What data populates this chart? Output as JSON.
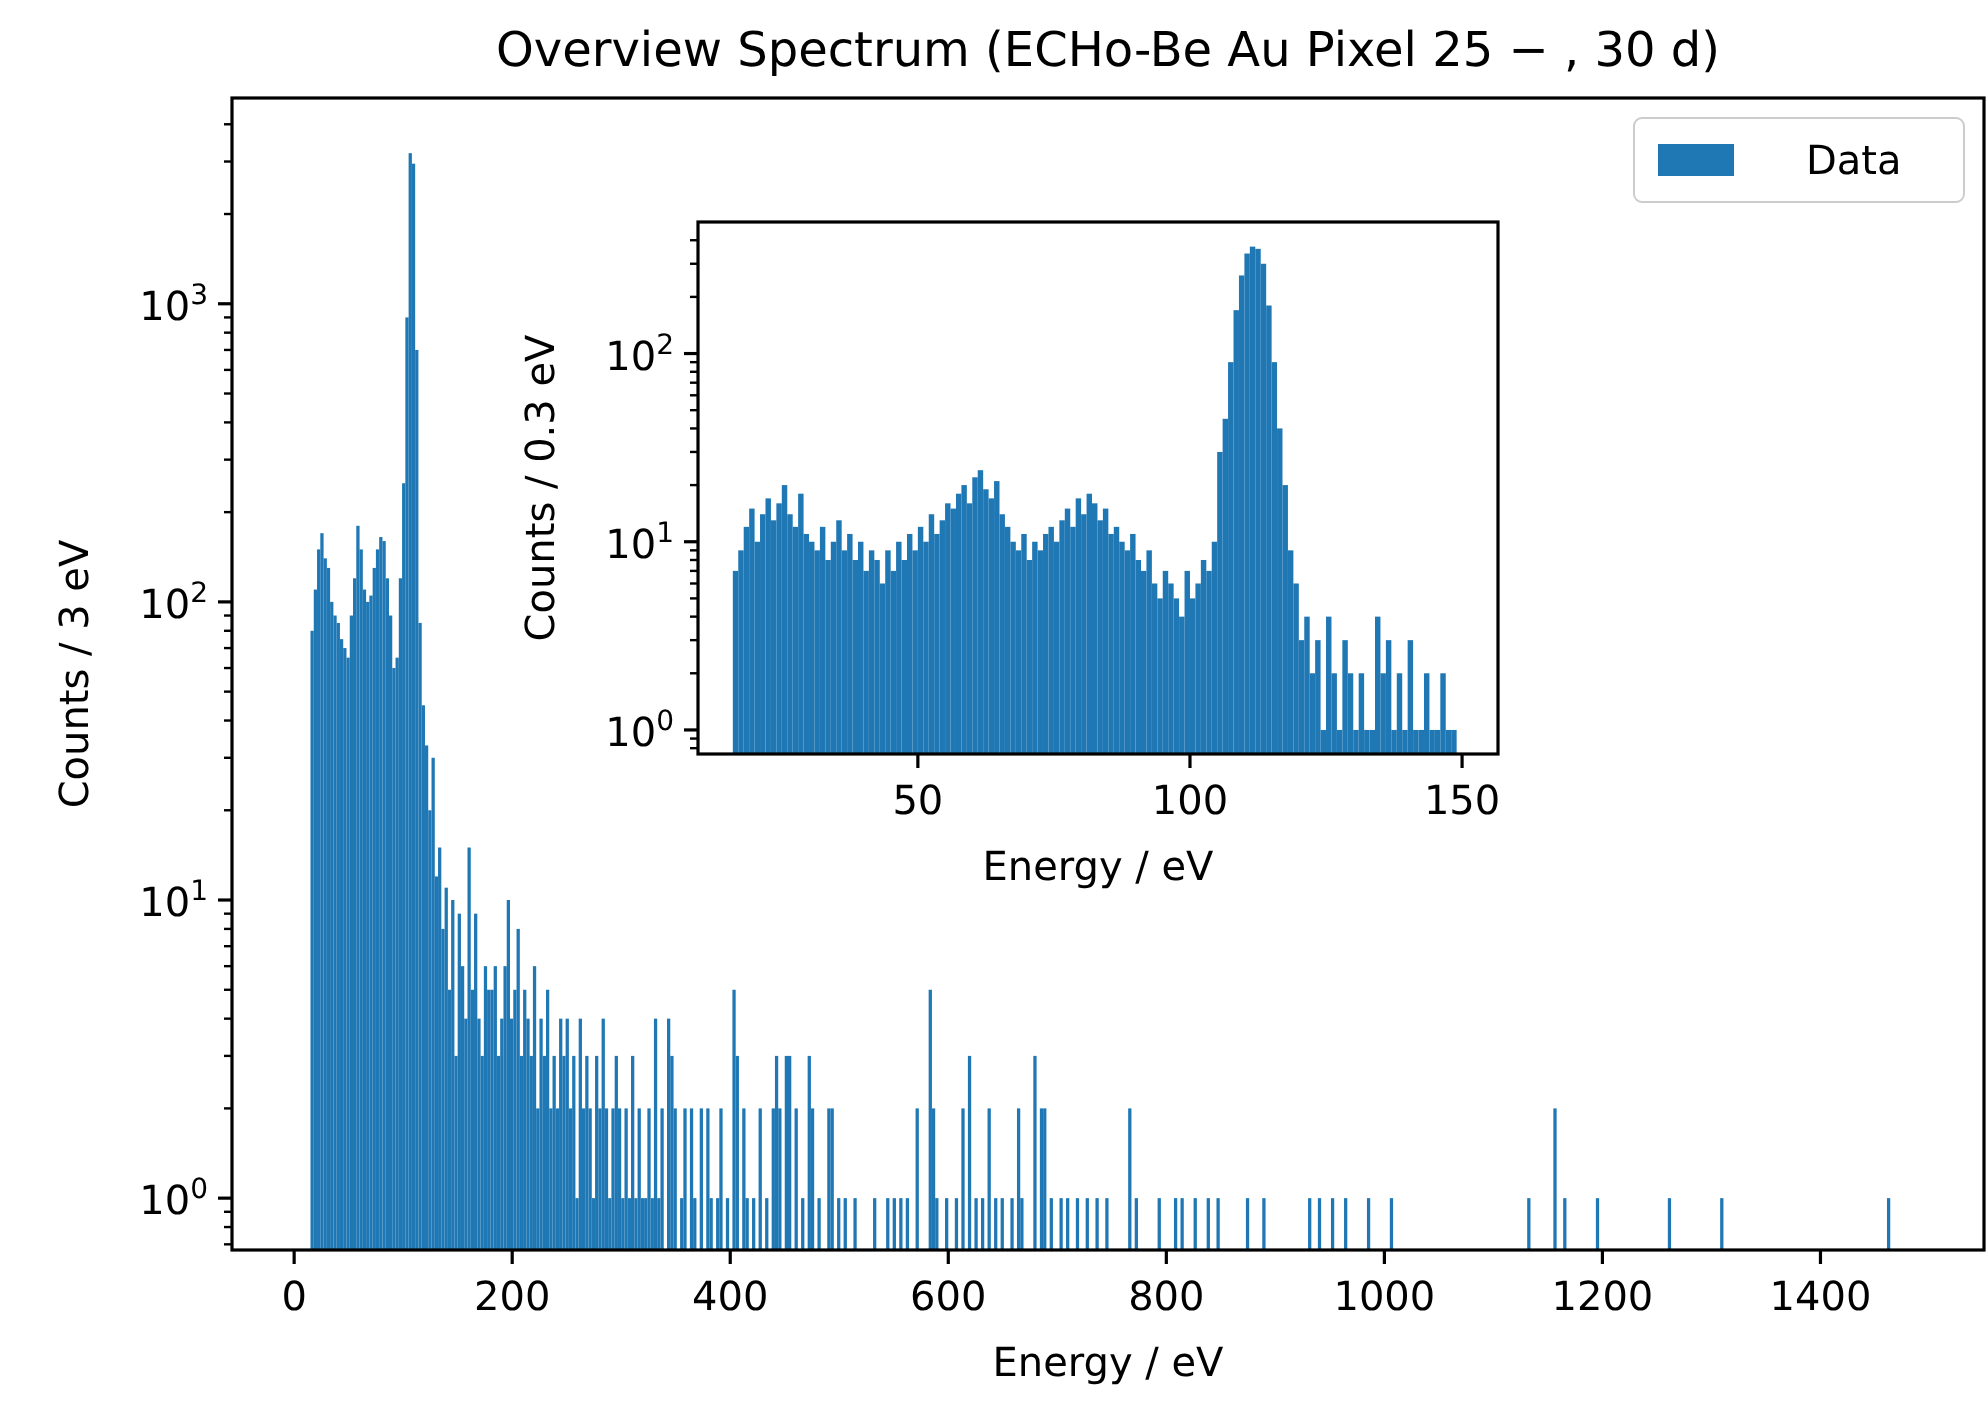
{
  "chart_data": [
    {
      "type": "histogram",
      "title": "Overview Spectrum (ECHo-Be Au Pixel 25 − , 30 d)",
      "xlabel": "Energy / eV",
      "ylabel": "Counts / 3 eV",
      "log": "y",
      "legend": "top right",
      "bins": [
        15,
        18,
        21,
        24,
        27,
        30,
        33,
        36,
        39,
        42,
        45,
        48,
        51,
        54,
        57,
        60,
        63,
        66,
        69,
        72,
        75,
        78,
        81,
        84,
        87,
        90,
        93,
        96,
        99,
        102,
        105,
        108,
        111,
        114,
        117,
        120,
        123,
        126,
        129,
        132,
        135,
        138,
        141,
        144,
        147,
        150,
        153,
        156,
        159,
        162,
        165,
        168,
        171,
        174,
        177,
        180,
        183,
        186,
        189,
        192,
        195,
        198,
        201,
        204,
        207,
        210,
        213,
        216,
        219,
        222,
        225,
        228,
        231,
        234,
        237,
        240,
        243,
        246,
        249,
        252,
        255,
        258,
        261,
        264,
        267,
        270,
        273,
        276,
        279,
        282,
        285,
        288,
        291,
        294,
        297,
        300,
        303,
        306,
        309,
        312,
        315,
        318,
        321,
        324,
        327,
        330,
        333,
        336,
        339,
        342,
        345,
        348,
        351,
        354,
        357,
        360,
        363,
        366,
        369,
        372,
        375,
        378,
        381,
        384,
        387,
        390,
        393,
        396,
        399,
        402,
        405,
        408,
        411,
        414,
        417,
        420,
        423,
        426,
        429,
        432,
        435,
        438,
        441,
        444,
        447,
        450,
        453,
        456,
        459,
        462,
        465,
        468,
        471,
        474,
        477,
        480,
        483,
        489,
        492,
        495,
        498,
        501,
        504,
        507,
        513,
        516,
        531,
        534,
        543,
        546,
        549,
        552,
        555,
        558,
        561,
        564,
        570,
        573,
        582,
        585,
        588,
        591,
        597,
        600,
        606,
        609,
        612,
        615,
        618,
        621,
        624,
        627,
        630,
        633,
        636,
        639,
        642,
        645,
        648,
        651,
        657,
        660,
        663,
        666,
        669,
        678,
        681,
        684,
        687,
        690,
        693,
        696,
        702,
        705,
        708,
        711,
        717,
        720,
        726,
        729,
        735,
        738,
        744,
        747,
        765,
        768,
        771,
        774,
        792,
        795,
        807,
        810,
        813,
        816,
        825,
        828,
        837,
        840,
        846,
        849,
        873,
        876,
        888,
        891,
        930,
        933,
        939,
        942,
        951,
        954,
        963,
        966,
        984,
        987,
        1005,
        1008,
        1131,
        1134,
        1155,
        1158,
        1164,
        1167,
        1194,
        1197,
        1260,
        1263,
        1308,
        1311,
        1461,
        1464
      ],
      "series": [
        {
          "name": "Data",
          "color": "#1f77b4",
          "values": [
            80,
            110,
            150,
            170,
            140,
            130,
            100,
            90,
            85,
            75,
            70,
            65,
            90,
            120,
            180,
            150,
            110,
            100,
            105,
            130,
            150,
            165,
            160,
            120,
            90,
            60,
            65,
            120,
            250,
            900,
            3200,
            2950,
            700,
            85,
            45,
            33,
            20,
            30,
            12,
            15,
            8,
            11,
            5,
            10,
            3,
            9,
            6,
            4,
            15,
            5,
            9,
            4,
            3,
            6,
            5,
            5,
            6,
            3,
            4,
            6,
            10,
            4,
            5,
            8,
            3,
            5,
            4,
            3,
            6,
            2,
            4,
            3,
            5,
            2,
            3,
            2,
            4,
            3,
            4,
            2,
            3,
            1,
            4,
            2,
            3,
            2,
            1,
            3,
            2,
            4,
            2,
            1,
            2,
            3,
            2,
            1,
            2,
            1,
            3,
            1,
            2,
            1,
            1,
            2,
            1,
            4,
            1,
            2,
            null,
            4,
            3,
            2,
            null,
            1,
            2,
            null,
            2,
            1,
            null,
            2,
            null,
            2,
            1,
            null,
            1,
            2,
            null,
            1,
            null,
            5,
            3,
            null,
            2,
            1,
            null,
            1,
            null,
            2,
            null,
            1,
            null,
            2,
            3,
            2,
            null,
            3,
            3,
            null,
            2,
            null,
            1,
            null,
            3,
            2,
            null,
            1,
            null,
            2,
            2,
            null,
            1,
            null,
            1,
            null,
            1,
            null,
            1,
            null,
            1,
            null,
            1,
            null,
            1,
            null,
            1,
            null,
            2,
            null,
            5,
            2,
            1,
            null,
            1,
            null,
            1,
            null,
            2,
            null,
            3,
            null,
            1,
            null,
            1,
            null,
            2,
            null,
            1,
            null,
            1,
            null,
            1,
            null,
            2,
            1,
            null,
            3,
            null,
            2,
            2,
            null,
            1,
            null,
            1,
            null,
            1,
            null,
            1,
            null,
            1,
            null,
            1,
            null,
            1,
            null,
            2,
            null,
            1,
            null,
            1,
            null,
            1,
            null,
            1,
            null,
            1,
            null,
            1,
            null,
            1,
            null,
            1,
            null,
            1,
            null,
            1,
            null,
            1,
            null,
            1,
            null,
            1,
            null,
            1,
            null,
            1,
            null,
            1,
            null,
            2,
            null,
            1,
            null,
            1,
            null,
            1,
            null,
            1,
            null,
            1
          ]
        }
      ],
      "xlim": [
        -57,
        1550
      ],
      "xticks": [
        0,
        200,
        400,
        600,
        800,
        1000,
        1200,
        1400
      ],
      "ylim": [
        0.67,
        4900
      ],
      "yticks": [
        {
          "value": 0.7,
          "label": null
        },
        {
          "value": 0.8,
          "label": null
        },
        {
          "value": 0.9,
          "label": null
        },
        {
          "value": 1,
          "label": "10$^{0}$"
        },
        {
          "value": 2,
          "label": null
        },
        {
          "value": 3,
          "label": null
        },
        {
          "value": 4,
          "label": null
        },
        {
          "value": 5,
          "label": null
        },
        {
          "value": 6,
          "label": null
        },
        {
          "value": 7,
          "label": null
        },
        {
          "value": 8,
          "label": null
        },
        {
          "value": 9,
          "label": null
        },
        {
          "value": 10,
          "label": "10$^{1}$"
        },
        {
          "value": 20,
          "label": null
        },
        {
          "value": 30,
          "label": null
        },
        {
          "value": 40,
          "label": null
        },
        {
          "value": 50,
          "label": null
        },
        {
          "value": 60,
          "label": null
        },
        {
          "value": 70,
          "label": null
        },
        {
          "value": 80,
          "label": null
        },
        {
          "value": 90,
          "label": null
        },
        {
          "value": 100,
          "label": "10$^{2}$"
        },
        {
          "value": 200,
          "label": null
        },
        {
          "value": 300,
          "label": null
        },
        {
          "value": 400,
          "label": null
        },
        {
          "value": 500,
          "label": null
        },
        {
          "value": 600,
          "label": null
        },
        {
          "value": 700,
          "label": null
        },
        {
          "value": 800,
          "label": null
        },
        {
          "value": 900,
          "label": null
        },
        {
          "value": 1000,
          "label": "10$^{3}$"
        },
        {
          "value": 2000,
          "label": null
        },
        {
          "value": 3000,
          "label": null
        },
        {
          "value": 4000,
          "label": null
        }
      ]
    },
    {
      "type": "histogram",
      "xlabel": "Energy / eV",
      "ylabel": "Counts / 0.3 eV",
      "log": "y",
      "bins": [
        16,
        17,
        18,
        19,
        20,
        21,
        22,
        23,
        24,
        25,
        26,
        27,
        28,
        29,
        30,
        31,
        32,
        33,
        34,
        35,
        36,
        37,
        38,
        39,
        40,
        41,
        42,
        43,
        44,
        45,
        46,
        47,
        48,
        49,
        50,
        51,
        52,
        53,
        54,
        55,
        56,
        57,
        58,
        59,
        60,
        61,
        62,
        63,
        64,
        65,
        66,
        67,
        68,
        69,
        70,
        71,
        72,
        73,
        74,
        75,
        76,
        77,
        78,
        79,
        80,
        81,
        82,
        83,
        84,
        85,
        86,
        87,
        88,
        89,
        90,
        91,
        92,
        93,
        94,
        95,
        96,
        97,
        98,
        99,
        100,
        101,
        102,
        103,
        104,
        105,
        106,
        107,
        108,
        109,
        110,
        111,
        112,
        113,
        114,
        115,
        116,
        117,
        118,
        119,
        120,
        121,
        122,
        123,
        124,
        125,
        126,
        127,
        128,
        129,
        130,
        131,
        132,
        133,
        134,
        135,
        136,
        137,
        138,
        139,
        140,
        141,
        142,
        143,
        144,
        145,
        146,
        147,
        148,
        149
      ],
      "series": [
        {
          "color": "#1f77b4",
          "values": [
            7,
            9,
            12,
            15,
            10,
            14,
            17,
            13,
            16,
            20,
            14,
            12,
            18,
            11,
            10,
            9,
            12,
            8,
            10,
            13,
            9,
            11,
            8,
            10,
            7,
            9,
            8,
            6,
            9,
            7,
            10,
            8,
            11,
            9,
            12,
            10,
            14,
            11,
            13,
            16,
            15,
            18,
            20,
            16,
            22,
            24,
            19,
            17,
            21,
            14,
            12,
            10,
            9,
            11,
            8,
            10,
            9,
            11,
            12,
            10,
            13,
            15,
            12,
            17,
            14,
            18,
            16,
            13,
            15,
            11,
            12,
            10,
            9,
            11,
            8,
            7,
            9,
            6,
            5,
            7,
            6,
            5,
            4,
            7,
            5,
            6,
            8,
            7,
            10,
            30,
            45,
            90,
            170,
            260,
            340,
            370,
            360,
            300,
            180,
            90,
            40,
            20,
            9,
            6,
            3,
            4,
            2,
            3,
            1,
            4,
            2,
            1,
            3,
            2,
            1,
            2,
            1,
            1,
            4,
            2,
            3,
            1,
            2,
            1,
            3,
            1,
            1,
            2,
            1,
            1,
            2,
            1,
            1
          ]
        }
      ],
      "xlim": [
        9.6,
        156.6
      ],
      "xticks": [
        50,
        100,
        150
      ],
      "ylim": [
        0.745,
        500
      ],
      "yticks": [
        {
          "value": 0.8,
          "label": null
        },
        {
          "value": 0.9,
          "label": null
        },
        {
          "value": 1,
          "label": "10$^{0}$"
        },
        {
          "value": 2,
          "label": null
        },
        {
          "value": 3,
          "label": null
        },
        {
          "value": 4,
          "label": null
        },
        {
          "value": 5,
          "label": null
        },
        {
          "value": 6,
          "label": null
        },
        {
          "value": 7,
          "label": null
        },
        {
          "value": 8,
          "label": null
        },
        {
          "value": 9,
          "label": null
        },
        {
          "value": 10,
          "label": "10$^{1}$"
        },
        {
          "value": 20,
          "label": null
        },
        {
          "value": 30,
          "label": null
        },
        {
          "value": 40,
          "label": null
        },
        {
          "value": 50,
          "label": null
        },
        {
          "value": 60,
          "label": null
        },
        {
          "value": 70,
          "label": null
        },
        {
          "value": 80,
          "label": null
        },
        {
          "value": 90,
          "label": null
        },
        {
          "value": 100,
          "label": "10$^{2}$"
        },
        {
          "value": 200,
          "label": null
        },
        {
          "value": 300,
          "label": null
        },
        {
          "value": 400,
          "label": null
        }
      ]
    }
  ]
}
